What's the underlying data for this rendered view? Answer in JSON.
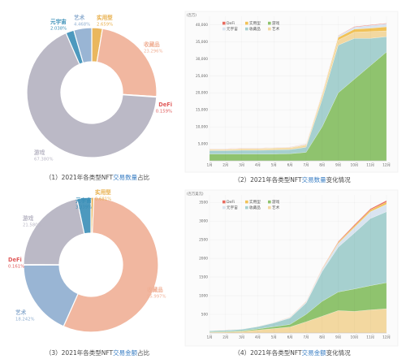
{
  "captions": [
    {
      "pre": "（1）2021年各类型NFT",
      "hl": "交易数量",
      "post": "占比"
    },
    {
      "pre": "（2）2021年各类型NFT",
      "hl": "交易数量",
      "post": "变化情况"
    },
    {
      "pre": "（3）2021年各类型NFT",
      "hl": "交易金额",
      "post": "占比"
    },
    {
      "pre": "（4）2021年各类型NFT",
      "hl": "交易金额",
      "post": "变化情况"
    }
  ],
  "colors": {
    "defi": "#e05a5a",
    "utility": "#e8b04d",
    "metaverse": "#3a8fb7",
    "art": "#8faed0",
    "collectible": "#f0b096",
    "game": "#b8b6c4",
    "area_defi": "#e86b5f",
    "area_utility": "#f1c257",
    "area_game": "#8fc36e",
    "area_metaverse": "#d9e4f0",
    "area_collectible": "#a6d0cf",
    "area_art": "#f3d8a0"
  },
  "legend": [
    "DeFi",
    "实用型",
    "游戏",
    "元宇宙",
    "收藏品",
    "艺术"
  ],
  "chart_data": [
    {
      "type": "pie",
      "title": "（1）2021年各类型NFT交易数量占比",
      "slices": [
        {
          "name": "实用型",
          "pct": "2.659%",
          "value": 2.659
        },
        {
          "name": "收藏品",
          "pct": "23.296%",
          "value": 23.296
        },
        {
          "name": "DeFi",
          "pct": "0.159%",
          "value": 0.159
        },
        {
          "name": "游戏",
          "pct": "67.380%",
          "value": 67.38
        },
        {
          "name": "元宇宙",
          "pct": "2.038%",
          "value": 2.038
        },
        {
          "name": "艺术",
          "pct": "4.468%",
          "value": 4.468
        }
      ]
    },
    {
      "type": "area",
      "title": "（2）2021年各类型NFT交易数量变化情况",
      "ylabel": "(百万)",
      "ylim": [
        0,
        42500
      ],
      "yticks": [
        5000,
        10000,
        15000,
        20000,
        25000,
        30000,
        35000,
        40000
      ],
      "ytick_labels": [
        "5,000",
        "10,000",
        "15,000",
        "20,000",
        "25,000",
        "30,000",
        "35,000",
        "40,000"
      ],
      "x": [
        "1月",
        "2月",
        "3月",
        "4月",
        "5月",
        "6月",
        "7月",
        "8月",
        "9月",
        "10月",
        "11月",
        "12月"
      ],
      "series": [
        {
          "name": "游戏",
          "values": [
            2000,
            2000,
            2000,
            2000,
            2000,
            2100,
            2500,
            10000,
            20000,
            24000,
            28000,
            32000
          ]
        },
        {
          "name": "收藏品",
          "values": [
            1000,
            1000,
            1100,
            1100,
            1200,
            1200,
            1500,
            8000,
            14000,
            12000,
            8000,
            4500
          ]
        },
        {
          "name": "艺术",
          "values": [
            300,
            300,
            400,
            400,
            500,
            500,
            500,
            1000,
            1500,
            1800,
            2000,
            1700
          ]
        },
        {
          "name": "实用型",
          "values": [
            100,
            100,
            100,
            100,
            100,
            100,
            200,
            500,
            800,
            900,
            1000,
            1200
          ]
        },
        {
          "name": "元宇宙",
          "values": [
            100,
            100,
            100,
            100,
            100,
            100,
            200,
            300,
            400,
            600,
            800,
            900
          ]
        },
        {
          "name": "DeFi",
          "values": [
            50,
            50,
            50,
            50,
            50,
            50,
            50,
            100,
            100,
            150,
            150,
            150
          ]
        }
      ]
    },
    {
      "type": "pie",
      "title": "（3）2021年各类型NFT交易金额占比",
      "slices": [
        {
          "name": "实用型",
          "pct": "0.681%",
          "value": 0.681
        },
        {
          "name": "收藏品",
          "pct": "55.997%",
          "value": 55.997
        },
        {
          "name": "艺术",
          "pct": "18.242%",
          "value": 18.242
        },
        {
          "name": "DeFi",
          "pct": "0.161%",
          "value": 0.161
        },
        {
          "name": "游戏",
          "pct": "21.580%",
          "value": 21.58
        },
        {
          "name": "元宇宙",
          "pct": "3.339%",
          "value": 3.339
        }
      ]
    },
    {
      "type": "area",
      "title": "（4）2021年各类型NFT交易金额变化情况",
      "ylabel": "(百万美元)",
      "ylim": [
        0,
        3700
      ],
      "yticks": [
        500,
        1000,
        1500,
        2000,
        2500,
        3000,
        3500
      ],
      "ytick_labels": [
        "500",
        "1000",
        "1500",
        "2000",
        "2500",
        "3000",
        "3500"
      ],
      "x": [
        "1月",
        "2月",
        "3月",
        "4月",
        "5月",
        "6月",
        "7月",
        "8月",
        "9月",
        "10月",
        "11月",
        "12月"
      ],
      "series": [
        {
          "name": "艺术",
          "values": [
            20,
            25,
            40,
            80,
            120,
            160,
            300,
            450,
            600,
            580,
            620,
            650
          ]
        },
        {
          "name": "游戏",
          "values": [
            10,
            15,
            20,
            30,
            50,
            70,
            200,
            400,
            500,
            600,
            650,
            700
          ]
        },
        {
          "name": "收藏品",
          "values": [
            30,
            35,
            40,
            60,
            100,
            170,
            300,
            800,
            1200,
            1500,
            1800,
            1900
          ]
        },
        {
          "name": "元宇宙",
          "values": [
            5,
            5,
            8,
            10,
            15,
            20,
            30,
            50,
            100,
            150,
            180,
            200
          ]
        },
        {
          "name": "实用型",
          "values": [
            2,
            2,
            3,
            4,
            5,
            6,
            10,
            20,
            30,
            40,
            50,
            60
          ]
        },
        {
          "name": "DeFi",
          "values": [
            1,
            1,
            1,
            2,
            2,
            3,
            5,
            10,
            20,
            30,
            30,
            40
          ]
        }
      ]
    }
  ]
}
